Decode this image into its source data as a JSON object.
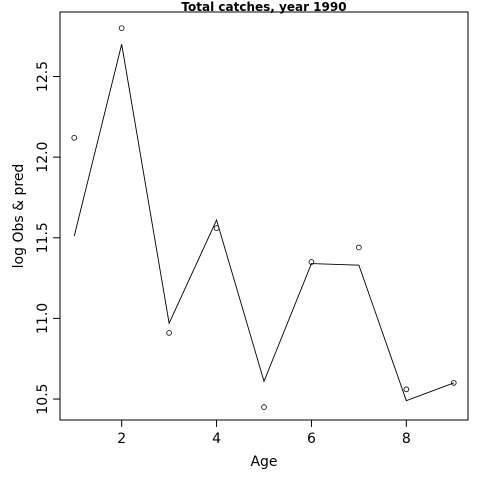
{
  "chart_data": {
    "type": "line",
    "title": "Total catches, year 1990",
    "xlabel": "Age",
    "ylabel": "log Obs & pred",
    "x": [
      1,
      2,
      3,
      4,
      5,
      6,
      7,
      8,
      9
    ],
    "series": [
      {
        "style": "points",
        "values": [
          12.12,
          12.8,
          10.91,
          11.56,
          10.45,
          11.35,
          11.44,
          10.56,
          10.6
        ]
      },
      {
        "style": "line",
        "values": [
          11.51,
          12.7,
          10.97,
          11.61,
          10.61,
          11.34,
          11.33,
          10.49,
          10.6
        ]
      }
    ],
    "xlim": [
      0.7,
      9.3
    ],
    "ylim": [
      10.37,
      12.9
    ],
    "xticks": [
      2,
      4,
      6,
      8
    ],
    "yticks": [
      10.5,
      11.0,
      11.5,
      12.0,
      12.5
    ],
    "xtick_labels": [
      "2",
      "4",
      "6",
      "8"
    ],
    "ytick_labels": [
      "10.5",
      "11.0",
      "11.5",
      "12.0",
      "12.5"
    ],
    "grid": false,
    "legend": "none"
  }
}
